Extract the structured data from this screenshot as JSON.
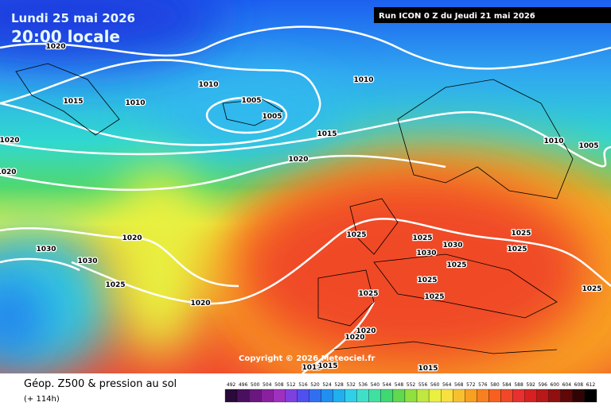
{
  "header": {
    "date": "Lundi 25 mai 2026",
    "time": "20:00 locale",
    "run": "Run ICON 0 Z du Jeudi 21 mai 2026"
  },
  "map": {
    "isobar_labels": [
      "1020",
      "1010",
      "1010",
      "1015",
      "1010",
      "1005",
      "1005",
      "1020",
      "1015",
      "1010",
      "1005",
      "1020",
      "1020",
      "1020",
      "1025",
      "1025",
      "1030",
      "1025",
      "1030",
      "1030",
      "1030",
      "1025",
      "1025",
      "1025",
      "1025",
      "1025",
      "1025",
      "1020",
      "1020",
      "1020",
      "1015",
      "1015",
      "1015",
      "1025"
    ]
  },
  "copyright": "Copyright © 2026 Meteociel.fr",
  "footer": {
    "title": "Géop. Z500 & pression au sol",
    "lead": "(+ 114h)"
  },
  "colorbar": {
    "values": [
      492,
      496,
      500,
      504,
      508,
      512,
      516,
      520,
      524,
      528,
      532,
      536,
      540,
      544,
      548,
      552,
      556,
      560,
      564,
      568,
      572,
      576,
      580,
      584,
      588,
      592,
      596,
      600,
      604,
      608,
      612
    ],
    "colors": [
      "#2a0a3a",
      "#4a1060",
      "#6a1880",
      "#8a20a0",
      "#a030c0",
      "#8040e0",
      "#5050f0",
      "#3070f0",
      "#2090f0",
      "#20b0f0",
      "#30d0e8",
      "#40e0c8",
      "#40e0a0",
      "#40d870",
      "#60d850",
      "#90e040",
      "#c0e840",
      "#e8f040",
      "#f8e040",
      "#f8c030",
      "#f8a020",
      "#f88020",
      "#f86020",
      "#f04828",
      "#e83030",
      "#d82020",
      "#b81818",
      "#901010",
      "#600808",
      "#300404",
      "#000000"
    ]
  }
}
